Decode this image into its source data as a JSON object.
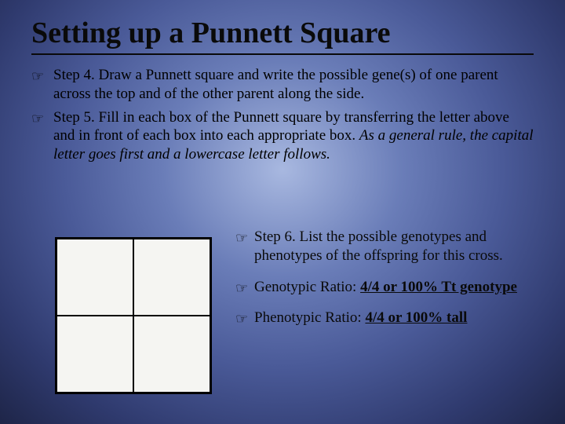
{
  "title": "Setting up a Punnett Square",
  "bullets": {
    "step4": "Step 4. Draw a Punnett square and write the possible gene(s) of one parent across the top and of the other parent along the side.",
    "step5_a": "Step 5. Fill in each box of the Punnett square by transferring the letter above and in front of each box into each appropriate box. ",
    "step5_b": "As a general rule, the capital letter goes first and a lowercase letter follows."
  },
  "right": {
    "step6": "Step 6. List the possible genotypes and phenotypes of the offspring for this cross.",
    "geno_label": "Genotypic Ratio:  ",
    "geno_value": "4/4 or 100% Tt genotype",
    "pheno_label": "Phenotypic Ratio: ",
    "pheno_value": "4/4 or 100% tall"
  },
  "bullet_glyph": "☞",
  "punnett": {
    "rows": 2,
    "cols": 2,
    "bg": "#f5f5f2",
    "border": "#000000"
  },
  "colors": {
    "text": "#0a0a0a",
    "bg_center": "#a8b8e0",
    "bg_outer": "#1e2548"
  },
  "fontsize": {
    "title": 38,
    "body": 19
  }
}
